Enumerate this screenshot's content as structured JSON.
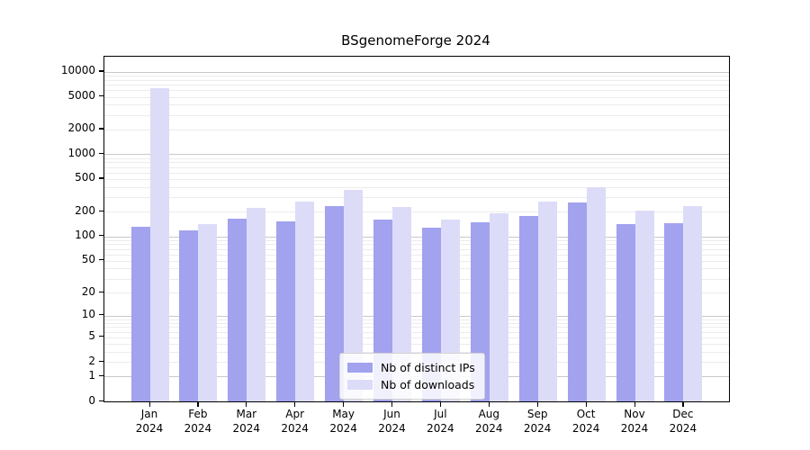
{
  "chart_data": {
    "type": "bar",
    "title": "BSgenomeForge 2024",
    "categories": [
      "Jan 2024",
      "Feb 2024",
      "Mar 2024",
      "Apr 2024",
      "May 2024",
      "Jun 2024",
      "Jul 2024",
      "Aug 2024",
      "Sep 2024",
      "Oct 2024",
      "Nov 2024",
      "Dec 2024"
    ],
    "months": [
      "Jan",
      "Feb",
      "Mar",
      "Apr",
      "May",
      "Jun",
      "Jul",
      "Aug",
      "Sep",
      "Oct",
      "Nov",
      "Dec"
    ],
    "year_label": "2024",
    "series": [
      {
        "name": "Nb of distinct IPs",
        "color": "#a2a2ef",
        "values": [
          130,
          118,
          166,
          152,
          237,
          159,
          127,
          149,
          176,
          257,
          142,
          146
        ]
      },
      {
        "name": "Nb of downloads",
        "color": "#dcdcf8",
        "values": [
          6400,
          142,
          224,
          264,
          372,
          227,
          160,
          192,
          264,
          396,
          208,
          233
        ]
      }
    ],
    "y_axis": {
      "scale": "log10(1+value)",
      "ticks": [
        0,
        1,
        2,
        5,
        10,
        20,
        50,
        100,
        200,
        500,
        1000,
        2000,
        5000,
        10000
      ],
      "major_gridlines": [
        1,
        10,
        100,
        1000,
        10000
      ],
      "top_value": 15000
    },
    "xlabel": "",
    "ylabel": "",
    "grid": {
      "on": true,
      "major_color": "#c9c9c9",
      "minor_color": "#ececec"
    },
    "legend": {
      "position": "bottom-center",
      "entries": [
        "Nb of distinct IPs",
        "Nb of downloads"
      ]
    }
  }
}
